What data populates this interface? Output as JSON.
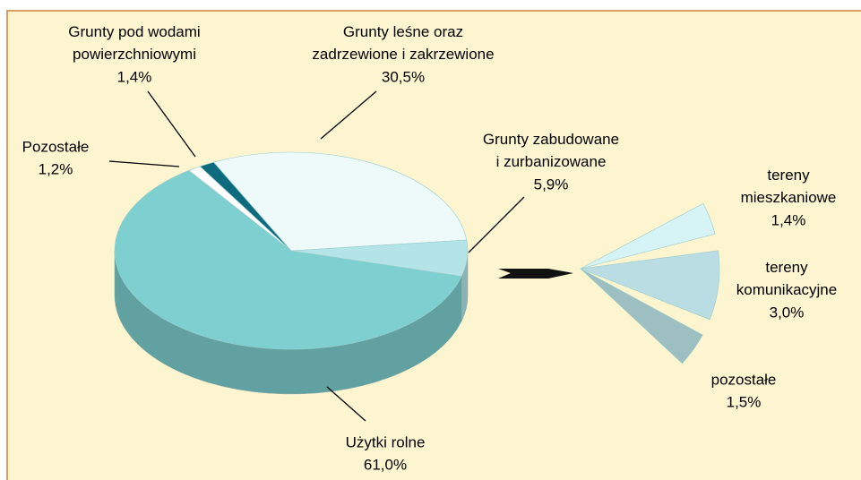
{
  "chart_data": [
    {
      "type": "pie",
      "categories": [
        "Użytki rolne",
        "Pozostałe",
        "Grunty pod wodami\npowierzchniowymi",
        "Grunty leśne oraz\nzadrzewione i zakrzewione",
        "Grunty zabudowane\ni zurbanizowane"
      ],
      "values": [
        61.0,
        1.2,
        1.4,
        30.5,
        5.9
      ],
      "value_labels": [
        "61,0%",
        "1,2%",
        "1,4%",
        "30,5%",
        "5,9%"
      ],
      "colors": [
        "#7ecfcf",
        "#ffffff",
        "#0e6b7e",
        "#eefafa",
        "#b5e4e8"
      ]
    },
    {
      "type": "pie",
      "categories": [
        "tereny\nmieszkaniowe",
        "tereny\nkomunikacyjne",
        "pozostałe"
      ],
      "values": [
        1.4,
        3.0,
        1.5
      ],
      "value_labels": [
        "1,4%",
        "3,0%",
        "1,5%"
      ],
      "colors": [
        "#d6f3f6",
        "#b9dde3",
        "#9dbfc2"
      ]
    }
  ]
}
